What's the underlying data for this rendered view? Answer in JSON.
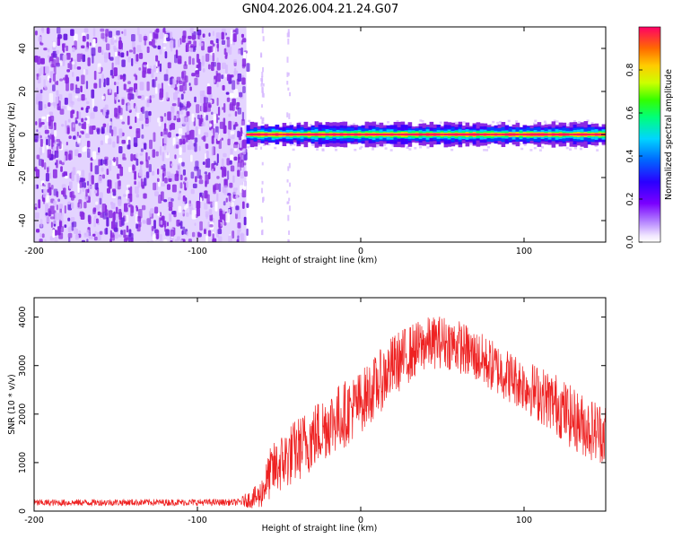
{
  "figure_title": "GN04.2026.004.21.24.G07",
  "colors": {
    "snr_line": "#ee2222",
    "spectrogram_noise": "#6a1ee0",
    "colormap": [
      "#f5f0ff",
      "#d6b8ff",
      "#8a2be2",
      "#3a00ff",
      "#0044ff",
      "#00ccff",
      "#00ff66",
      "#ccff00",
      "#ffcc00",
      "#ff5500",
      "#ff0066"
    ]
  },
  "chart_data": [
    {
      "type": "heatmap",
      "xlabel": "Height of straight line (km)",
      "ylabel": "Frequency (Hz)",
      "xlim": [
        -200,
        150
      ],
      "ylim": [
        -50,
        50
      ],
      "xticks": [
        "-200",
        "-100",
        "0",
        "100"
      ],
      "xtick_values": [
        -200,
        -100,
        0,
        100
      ],
      "yticks": [
        "40",
        "20",
        "0",
        "-20",
        "-40"
      ],
      "ytick_values": [
        40,
        20,
        0,
        -20,
        -40
      ],
      "noise_region_x": [
        -200,
        -70
      ],
      "sparse_noise_columns_x": [
        -61,
        -45
      ],
      "signal_band_x": [
        -70,
        150
      ],
      "signal_band_freq_hz": 0,
      "signal_band_halfwidth_hz": 3,
      "colorbar": {
        "label": "Normalized spectral amplitude",
        "range": [
          0,
          1
        ],
        "ticks": [
          "0.0",
          "0.2",
          "0.4",
          "0.6",
          "0.8"
        ],
        "tick_values": [
          0.0,
          0.2,
          0.4,
          0.6,
          0.8
        ]
      }
    },
    {
      "type": "line",
      "xlabel": "Height of straight line (km)",
      "ylabel": "SNR (10 * v/v)",
      "xlim": [
        -200,
        150
      ],
      "ylim": [
        0,
        4400
      ],
      "xticks": [
        "-200",
        "-100",
        "0",
        "100"
      ],
      "xtick_values": [
        -200,
        -100,
        0,
        100
      ],
      "yticks": [
        "4000",
        "3000",
        "2000",
        "1000",
        "0"
      ],
      "ytick_values": [
        4000,
        3000,
        2000,
        1000,
        0
      ],
      "series": [
        {
          "x": [
            -200,
            -150,
            -100,
            -75,
            -62,
            -55,
            -45,
            -30,
            -20,
            -10,
            0,
            10,
            20,
            30,
            40,
            50,
            60,
            70,
            80,
            90,
            100,
            110,
            120,
            130,
            140,
            150
          ],
          "center": [
            170,
            180,
            180,
            180,
            300,
            800,
            1100,
            1500,
            1800,
            2000,
            2250,
            2600,
            3000,
            3250,
            3450,
            3500,
            3400,
            3200,
            3000,
            2800,
            2600,
            2400,
            2200,
            1900,
            1700,
            1600
          ],
          "spread": [
            70,
            70,
            70,
            70,
            280,
            550,
            650,
            700,
            700,
            700,
            650,
            650,
            650,
            600,
            550,
            550,
            550,
            550,
            550,
            550,
            550,
            600,
            650,
            650,
            650,
            650
          ]
        }
      ]
    }
  ]
}
